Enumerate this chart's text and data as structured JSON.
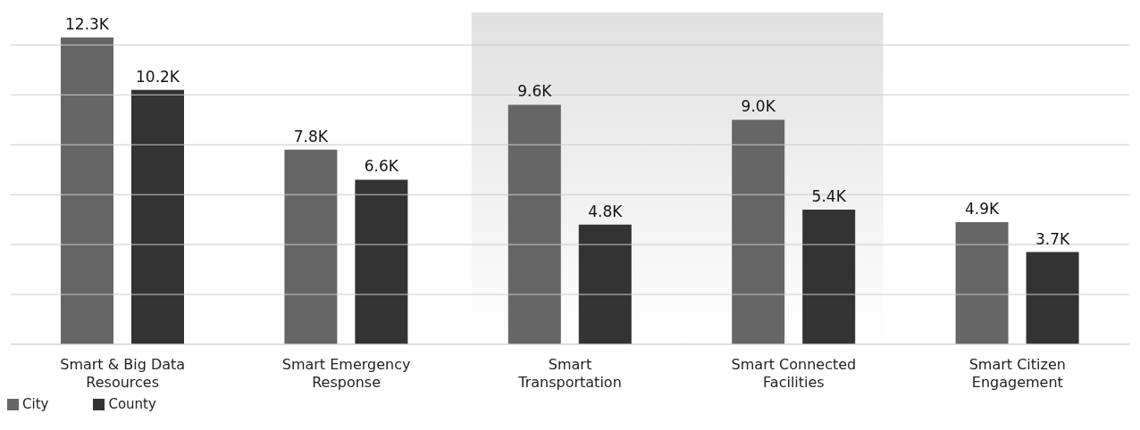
{
  "chart_data": {
    "type": "bar",
    "categories": [
      "Smart & Big Data\nResources",
      "Smart Emergency\nResponse",
      "Smart\nTransportation",
      "Smart Connected\nFacilities",
      "Smart Citizen\nEngagement"
    ],
    "series": [
      {
        "name": "City",
        "color": "#666666",
        "values": [
          12300,
          7800,
          9600,
          9000,
          4900
        ],
        "value_labels": [
          "12.3K",
          "7.8K",
          "9.6K",
          "9.0K",
          "4.9K"
        ]
      },
      {
        "name": "County",
        "color": "#333333",
        "values": [
          10200,
          6600,
          4800,
          5400,
          3700
        ],
        "value_labels": [
          "10.2K",
          "6.6K",
          "4.8K",
          "5.4K",
          "3.7K"
        ]
      }
    ],
    "ylim": [
      0,
      13300
    ],
    "yticks": [
      {
        "value": 0,
        "label": null
      },
      {
        "value": 2000,
        "label": null
      },
      {
        "value": 4000,
        "label": null
      },
      {
        "value": 6000,
        "label": null
      },
      {
        "value": 8000,
        "label": null
      },
      {
        "value": 10000,
        "label": null
      },
      {
        "value": 12000,
        "label": null
      }
    ],
    "tick_labels": "x",
    "grid": "y",
    "legend": "bottom left",
    "bands": [
      {
        "axis": "x",
        "from": "Smart\nTransportation",
        "to": "Smart Connected\nFacilities",
        "color": "#e0e0e0"
      }
    ]
  }
}
